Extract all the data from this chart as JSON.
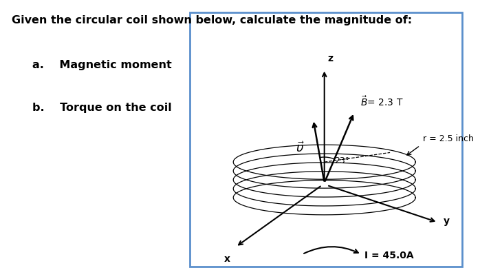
{
  "title_text": "Given the circular coil shown below, calculate the magnitude of:",
  "item_a": "a.    Magnetic moment",
  "item_b": "b.    Torque on the coil",
  "box_color": "#5B8FCC",
  "B_label": "$\\vec{B}$= 2.3 T",
  "mu_label": "$\\vec{\\upsilon}$",
  "angle_label": "23°",
  "r_label": "r = 2.5 inch",
  "I_label": "I = 45.0A",
  "x_label": "x",
  "y_label": "y",
  "z_label": "z",
  "coil_color": "#000000",
  "n_coils": 5,
  "font_size": 11.5
}
